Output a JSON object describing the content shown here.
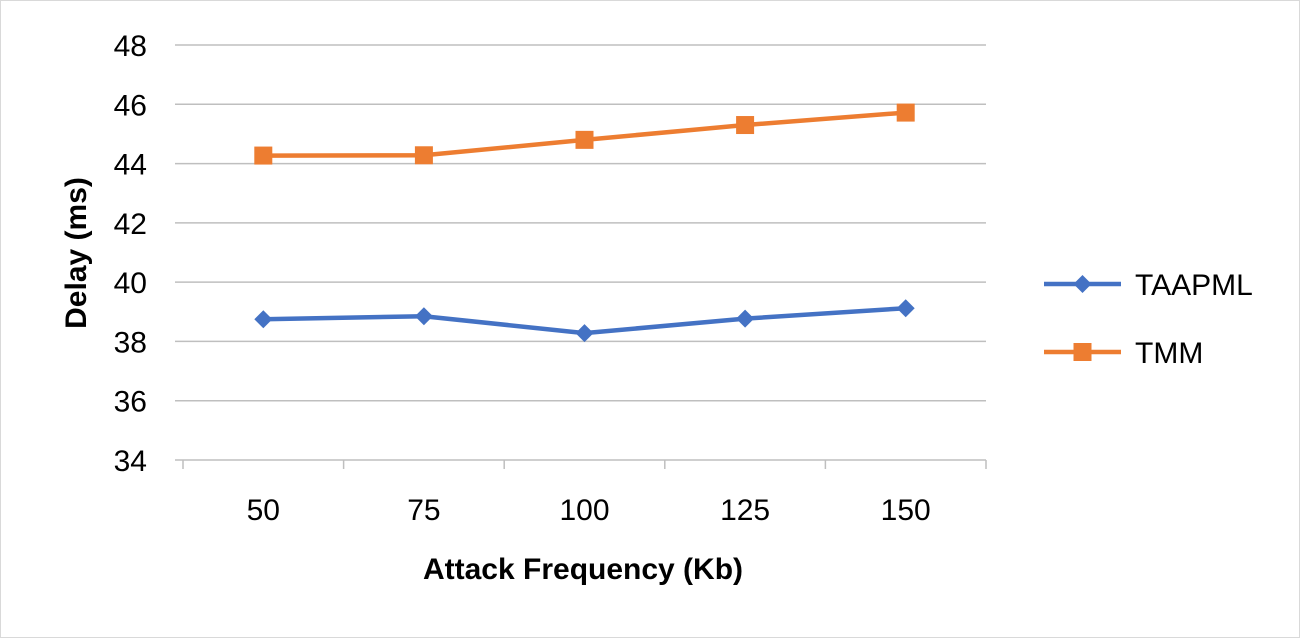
{
  "chart_data": {
    "type": "line",
    "title": "",
    "xlabel": "Attack Frequency (Kb)",
    "ylabel": "Delay (ms)",
    "categories": [
      "50",
      "75",
      "100",
      "125",
      "150"
    ],
    "ylim": [
      34,
      48
    ],
    "yticks": [
      "34",
      "36",
      "38",
      "40",
      "42",
      "44",
      "46",
      "48"
    ],
    "grid": true,
    "legend_position": "right",
    "series": [
      {
        "name": "TAAPML",
        "color": "#4472c4",
        "marker": "diamond",
        "values": [
          38.75,
          38.85,
          38.28,
          38.77,
          39.12
        ]
      },
      {
        "name": "TMM",
        "color": "#ed7d31",
        "marker": "square",
        "values": [
          44.27,
          44.28,
          44.8,
          45.3,
          45.72
        ]
      }
    ]
  }
}
